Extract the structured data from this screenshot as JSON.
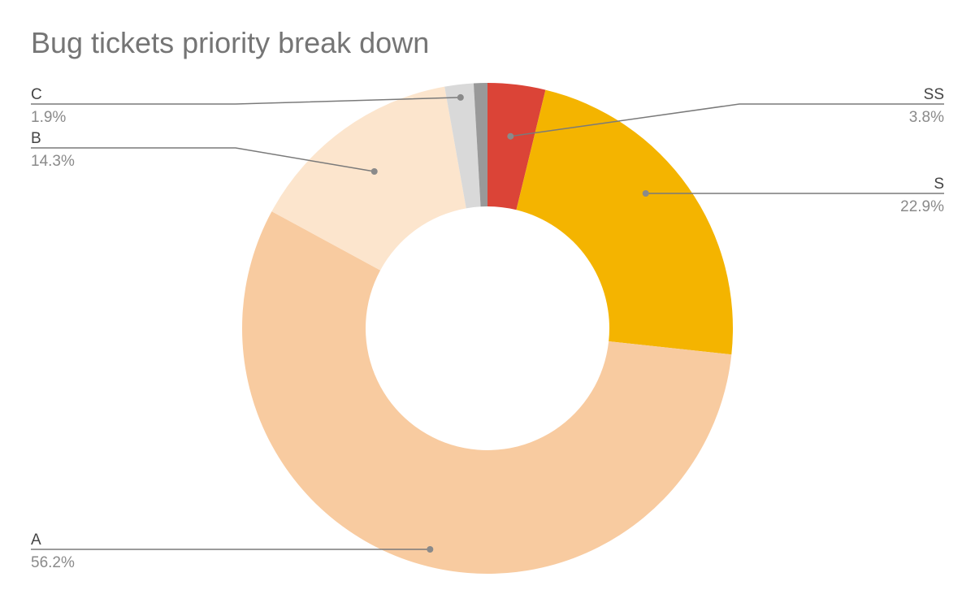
{
  "chart_data": {
    "type": "pie",
    "donut": true,
    "title": "Bug tickets priority break down",
    "slices": [
      {
        "label": "SS",
        "percent": "3.8%",
        "value": 3.8,
        "color": "#db4437",
        "side": "right"
      },
      {
        "label": "S",
        "percent": "22.9%",
        "value": 22.9,
        "color": "#f4b400",
        "side": "right"
      },
      {
        "label": "A",
        "percent": "56.2%",
        "value": 56.2,
        "color": "#f8cba0",
        "side": "left"
      },
      {
        "label": "B",
        "percent": "14.3%",
        "value": 14.3,
        "color": "#fce5cd",
        "side": "left"
      },
      {
        "label": "C",
        "percent": "1.9%",
        "value": 1.9,
        "color": "#d9d9d9",
        "side": "left"
      },
      {
        "label": "",
        "percent": "",
        "value": 0.9,
        "color": "#999999",
        "side": "none"
      }
    ],
    "legend": "callout labels"
  }
}
